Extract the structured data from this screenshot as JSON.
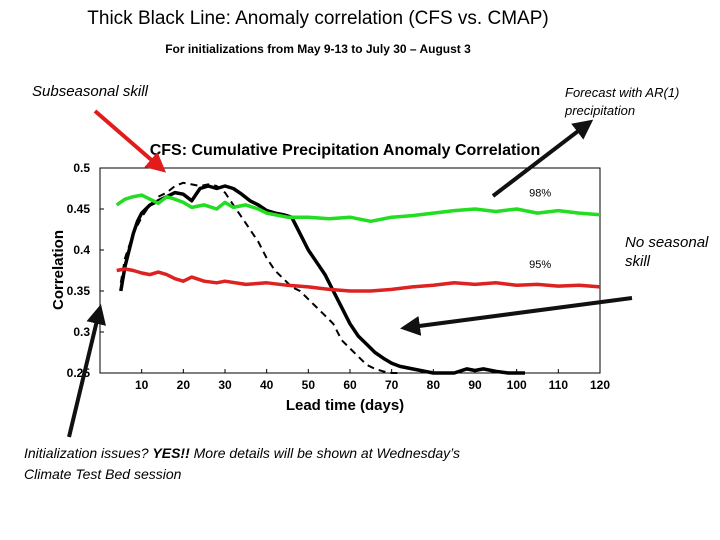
{
  "slide": {
    "title": "Thick Black Line: Anomaly correlation (CFS vs. CMAP)",
    "subtitle": "For initializations from May 9-13 to July 30 – August 3"
  },
  "annotations": {
    "subseasonal": "Subseasonal skill",
    "ar1": "Forecast with AR(1) precipitation",
    "no_seasonal": "No seasonal skill",
    "init_prefix": "Initialization issues? ",
    "init_bold": "YES!!",
    "init_rest": " More details will be shown at Wednesday’s Climate Test Bed session"
  },
  "chart_data": {
    "type": "line",
    "title": "CFS: Cumulative Precipitation Anomaly Correlation",
    "xlabel": "Lead time (days)",
    "ylabel": "Correlation",
    "xlim": [
      0,
      120
    ],
    "ylim": [
      0.25,
      0.5
    ],
    "xticks": [
      10,
      20,
      30,
      40,
      50,
      60,
      70,
      80,
      90,
      100,
      110,
      120
    ],
    "yticks": [
      0.25,
      0.3,
      0.35,
      0.4,
      0.45,
      0.5
    ],
    "ytick_labels": [
      "0.25",
      "0.3",
      "0.35",
      "0.4",
      "0.45",
      "0.5"
    ],
    "grid": false,
    "series": [
      {
        "color": "#000000",
        "style": "solid-thick",
        "x": [
          5,
          6,
          7,
          8,
          9,
          10,
          12,
          14,
          16,
          18,
          20,
          22,
          24,
          26,
          28,
          30,
          32,
          34,
          36,
          38,
          40,
          42,
          44,
          46,
          48,
          50,
          52,
          54,
          56,
          58,
          60,
          62,
          64,
          66,
          68,
          70,
          72,
          75,
          78,
          80,
          82,
          85,
          88,
          90,
          92,
          95,
          98,
          100,
          102
        ],
        "y": [
          0.35,
          0.38,
          0.4,
          0.42,
          0.435,
          0.445,
          0.455,
          0.46,
          0.465,
          0.47,
          0.468,
          0.46,
          0.475,
          0.478,
          0.475,
          0.478,
          0.475,
          0.468,
          0.46,
          0.455,
          0.448,
          0.445,
          0.443,
          0.44,
          0.42,
          0.4,
          0.385,
          0.37,
          0.35,
          0.33,
          0.31,
          0.295,
          0.285,
          0.275,
          0.268,
          0.262,
          0.258,
          0.255,
          0.252,
          0.25,
          0.25,
          0.25,
          0.255,
          0.253,
          0.255,
          0.252,
          0.25,
          0.25,
          0.25
        ]
      },
      {
        "color": "#000000",
        "style": "dashed",
        "x": [
          5,
          6,
          8,
          10,
          12,
          14,
          16,
          18,
          20,
          22,
          24,
          26,
          28,
          30,
          32,
          34,
          36,
          38,
          40,
          42,
          44,
          46,
          48,
          50,
          52,
          54,
          56,
          58,
          60,
          62,
          64,
          66,
          68,
          70,
          72
        ],
        "y": [
          0.36,
          0.39,
          0.42,
          0.44,
          0.455,
          0.465,
          0.47,
          0.478,
          0.482,
          0.48,
          0.478,
          0.48,
          0.478,
          0.47,
          0.455,
          0.44,
          0.425,
          0.41,
          0.39,
          0.375,
          0.365,
          0.355,
          0.35,
          0.34,
          0.33,
          0.32,
          0.31,
          0.29,
          0.28,
          0.27,
          0.26,
          0.255,
          0.252,
          0.25,
          0.25
        ]
      },
      {
        "color": "#22dd22",
        "style": "solid-thick",
        "x": [
          4,
          6,
          8,
          10,
          12,
          14,
          16,
          18,
          20,
          22,
          25,
          28,
          30,
          32,
          35,
          38,
          40,
          45,
          50,
          55,
          60,
          65,
          70,
          75,
          80,
          85,
          90,
          95,
          100,
          105,
          110,
          115,
          120
        ],
        "y": [
          0.455,
          0.462,
          0.465,
          0.467,
          0.462,
          0.457,
          0.465,
          0.462,
          0.458,
          0.452,
          0.455,
          0.45,
          0.458,
          0.452,
          0.455,
          0.45,
          0.445,
          0.44,
          0.44,
          0.438,
          0.44,
          0.435,
          0.44,
          0.442,
          0.445,
          0.448,
          0.45,
          0.447,
          0.45,
          0.445,
          0.448,
          0.445,
          0.443
        ]
      },
      {
        "color": "#dd2222",
        "style": "solid-thick",
        "x": [
          4,
          6,
          8,
          10,
          12,
          14,
          16,
          18,
          20,
          22,
          25,
          28,
          30,
          35,
          40,
          45,
          50,
          55,
          60,
          65,
          70,
          75,
          80,
          85,
          90,
          95,
          100,
          105,
          110,
          115,
          120
        ],
        "y": [
          0.375,
          0.377,
          0.375,
          0.372,
          0.37,
          0.373,
          0.37,
          0.365,
          0.362,
          0.367,
          0.362,
          0.36,
          0.362,
          0.358,
          0.36,
          0.357,
          0.355,
          0.352,
          0.35,
          0.35,
          0.352,
          0.355,
          0.357,
          0.36,
          0.358,
          0.36,
          0.357,
          0.358,
          0.356,
          0.357,
          0.355
        ]
      }
    ],
    "series_labels": [
      {
        "text": "98%",
        "x": 103,
        "y": 0.465
      },
      {
        "text": "95%",
        "x": 103,
        "y": 0.378
      }
    ]
  }
}
